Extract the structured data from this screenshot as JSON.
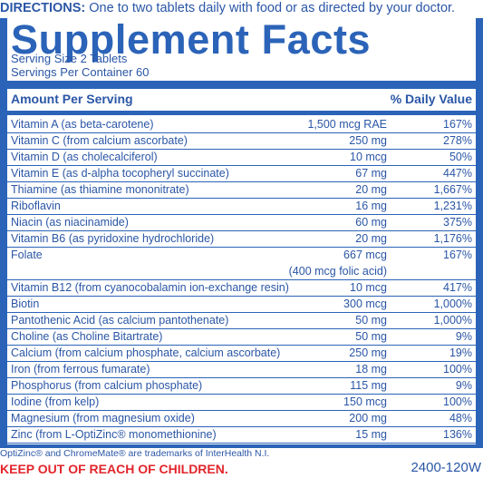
{
  "directions": {
    "label": "DIRECTIONS:",
    "text": " One to two tablets daily with food or as directed by your doctor."
  },
  "title": "Supplement Facts",
  "serving_size": "Serving Size 2 Tablets",
  "servings_per_container": "Servings Per Container 60",
  "header": {
    "amount": "Amount Per Serving",
    "dv": "% Daily Value"
  },
  "nutrients": [
    {
      "name": "Vitamin A (as beta-carotene)",
      "amount": "1,500 mcg RAE",
      "dv": "167%"
    },
    {
      "name": "Vitamin C (from calcium ascorbate)",
      "amount": "250 mg",
      "dv": "278%"
    },
    {
      "name": "Vitamin D (as cholecalciferol)",
      "amount": "10 mcg",
      "dv": "50%"
    },
    {
      "name": "Vitamin E (as d-alpha tocopheryl succinate)",
      "amount": "67 mg",
      "dv": "447%"
    },
    {
      "name": "Thiamine (as thiamine mononitrate)",
      "amount": "20 mg",
      "dv": "1,667%"
    },
    {
      "name": "Riboflavin",
      "amount": "16 mg",
      "dv": "1,231%"
    },
    {
      "name": "Niacin (as niacinamide)",
      "amount": "60 mg",
      "dv": "375%"
    },
    {
      "name": "Vitamin B6 (as pyridoxine hydrochloride)",
      "amount": "20 mg",
      "dv": "1,176%"
    },
    {
      "name": "Folate",
      "amount": "667 mcg",
      "amount2": "(400 mcg folic acid)",
      "dv": "167%"
    },
    {
      "name": "Vitamin B12 (from cyanocobalamin ion-exchange resin)",
      "amount": "10 mcg",
      "dv": "417%"
    },
    {
      "name": "Biotin",
      "amount": "300 mcg",
      "dv": "1,000%"
    },
    {
      "name": "Pantothenic Acid (as calcium pantothenate)",
      "amount": "50 mg",
      "dv": "1,000%"
    },
    {
      "name": "Choline (as Choline Bitartrate)",
      "amount": "50 mg",
      "dv": "9%"
    },
    {
      "name": "Calcium (from calcium phosphate, calcium ascorbate)",
      "amount": "250 mg",
      "dv": "19%"
    },
    {
      "name": "Iron (from ferrous fumarate)",
      "amount": "18 mg",
      "dv": "100%"
    },
    {
      "name": "Phosphorus (from calcium phosphate)",
      "amount": "115 mg",
      "dv": "9%"
    },
    {
      "name": "Iodine (from kelp)",
      "amount": "150 mcg",
      "dv": "100%"
    },
    {
      "name": "Magnesium (from magnesium oxide)",
      "amount": "200 mg",
      "dv": "48%"
    },
    {
      "name": "Zinc (from L-OptiZinc® monomethionine)",
      "amount": "15 mg",
      "dv": "136%"
    }
  ],
  "footnote": "OptiZinc® and ChromeMate® are trademarks of InterHealth N.I.",
  "warning": "KEEP OUT OF REACH OF CHILDREN.",
  "code": "2400-120W",
  "colors": {
    "brand_blue": "#2b63b8",
    "warning_red": "#e2262c"
  }
}
